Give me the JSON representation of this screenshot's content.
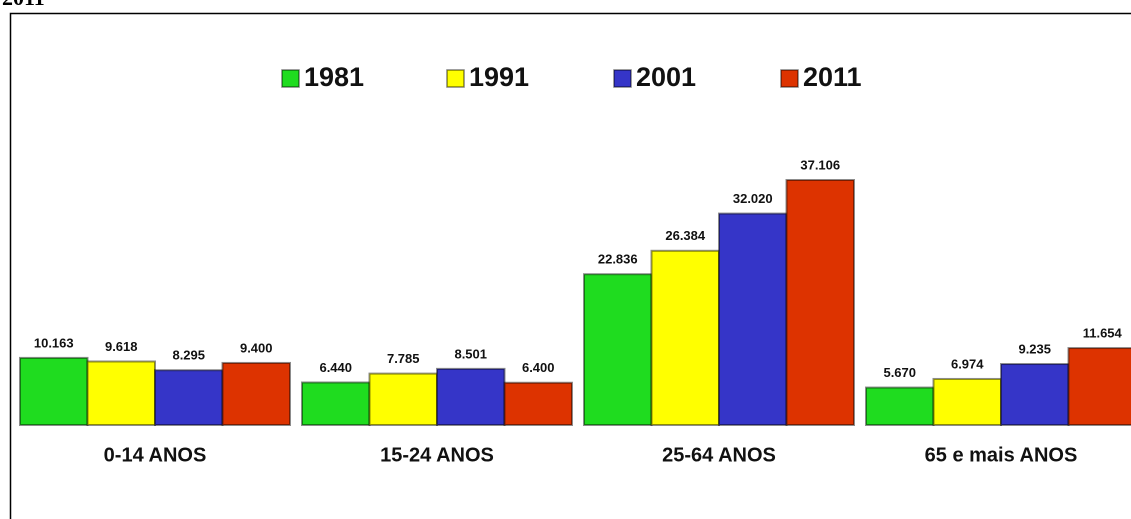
{
  "chart_data": {
    "type": "bar",
    "title": "2011",
    "categories": [
      "0-14 ANOS",
      "15-24 ANOS",
      "25-64 ANOS",
      "65 e mais ANOS"
    ],
    "series": [
      {
        "name": "1981",
        "color": "#1fdc1f",
        "values": [
          10163,
          6440,
          22836,
          5670
        ],
        "value_labels": [
          "10.163",
          "6.440",
          "22.836",
          "5.670"
        ]
      },
      {
        "name": "1991",
        "color": "#ffff00",
        "values": [
          9618,
          7785,
          26384,
          6974
        ],
        "value_labels": [
          "9.618",
          "7.785",
          "26.384",
          "6.974"
        ]
      },
      {
        "name": "2001",
        "color": "#3535c8",
        "values": [
          8295,
          8501,
          32020,
          9235
        ],
        "value_labels": [
          "8.295",
          "8.501",
          "32.020",
          "9.235"
        ]
      },
      {
        "name": "2011",
        "color": "#dd3300",
        "values": [
          9400,
          6400,
          37106,
          11654
        ],
        "value_labels": [
          "9.400",
          "6.400",
          "37.106",
          "11.654"
        ]
      }
    ],
    "legend": "top"
  }
}
